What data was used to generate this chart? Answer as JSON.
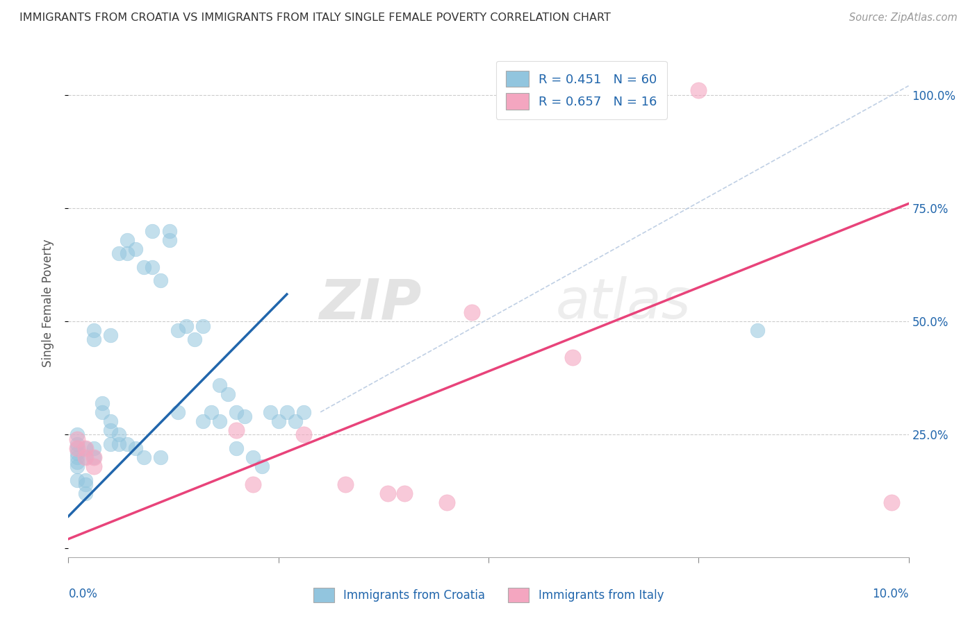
{
  "title": "IMMIGRANTS FROM CROATIA VS IMMIGRANTS FROM ITALY SINGLE FEMALE POVERTY CORRELATION CHART",
  "source": "Source: ZipAtlas.com",
  "ylabel": "Single Female Poverty",
  "xlim": [
    0.0,
    0.1
  ],
  "ylim": [
    -0.02,
    1.1
  ],
  "color_blue_scatter": "#92c5de",
  "color_pink_scatter": "#f4a6c0",
  "color_blue_line": "#2166ac",
  "color_pink_line": "#e8437a",
  "color_blue_label": "#2166ac",
  "color_dashed": "#b0c4de",
  "label_croatia": "Immigrants from Croatia",
  "label_italy": "Immigrants from Italy",
  "watermark_zip": "ZIP",
  "watermark_atlas": "atlas",
  "blue_line_x": [
    0.0,
    0.026
  ],
  "blue_line_y": [
    0.07,
    0.56
  ],
  "pink_line_x": [
    0.0,
    0.1
  ],
  "pink_line_y": [
    0.02,
    0.76
  ],
  "dashed_line_x": [
    0.03,
    0.1
  ],
  "dashed_line_y": [
    0.3,
    1.02
  ],
  "blue_x": [
    0.002,
    0.002,
    0.003,
    0.003,
    0.003,
    0.003,
    0.004,
    0.004,
    0.005,
    0.005,
    0.005,
    0.005,
    0.006,
    0.006,
    0.006,
    0.007,
    0.007,
    0.007,
    0.008,
    0.008,
    0.009,
    0.009,
    0.01,
    0.01,
    0.011,
    0.011,
    0.012,
    0.012,
    0.013,
    0.013,
    0.014,
    0.015,
    0.016,
    0.016,
    0.017,
    0.018,
    0.018,
    0.019,
    0.02,
    0.02,
    0.021,
    0.022,
    0.023,
    0.024,
    0.025,
    0.026,
    0.027,
    0.028,
    0.001,
    0.001,
    0.001,
    0.001,
    0.001,
    0.001,
    0.001,
    0.001,
    0.002,
    0.002,
    0.002,
    0.082
  ],
  "blue_y": [
    0.22,
    0.2,
    0.48,
    0.46,
    0.22,
    0.2,
    0.32,
    0.3,
    0.47,
    0.28,
    0.26,
    0.23,
    0.25,
    0.23,
    0.65,
    0.68,
    0.65,
    0.23,
    0.66,
    0.22,
    0.2,
    0.62,
    0.7,
    0.62,
    0.59,
    0.2,
    0.7,
    0.68,
    0.48,
    0.3,
    0.49,
    0.46,
    0.49,
    0.28,
    0.3,
    0.28,
    0.36,
    0.34,
    0.22,
    0.3,
    0.29,
    0.2,
    0.18,
    0.3,
    0.28,
    0.3,
    0.28,
    0.3,
    0.22,
    0.2,
    0.18,
    0.15,
    0.25,
    0.23,
    0.21,
    0.19,
    0.14,
    0.12,
    0.15,
    0.48
  ],
  "pink_x": [
    0.001,
    0.001,
    0.002,
    0.002,
    0.003,
    0.003,
    0.02,
    0.022,
    0.028,
    0.033,
    0.038,
    0.04,
    0.045,
    0.048,
    0.06,
    0.075,
    0.098
  ],
  "pink_y": [
    0.24,
    0.22,
    0.2,
    0.22,
    0.2,
    0.18,
    0.26,
    0.14,
    0.25,
    0.14,
    0.12,
    0.12,
    0.1,
    0.52,
    0.42,
    1.01,
    0.1
  ]
}
